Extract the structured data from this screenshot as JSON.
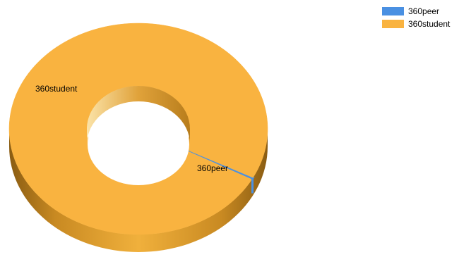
{
  "chart_data": {
    "type": "pie",
    "variant": "3d-doughnut",
    "title": "",
    "slices": [
      {
        "label": "360peer",
        "value": 0.3,
        "color": "#4a90e2"
      },
      {
        "label": "360student",
        "value": 99.7,
        "color": "#f9b340"
      }
    ],
    "legend": {
      "placement": "top-right",
      "entries": [
        {
          "label": "360peer",
          "color": "#4a90e2"
        },
        {
          "label": "360student",
          "color": "#f9b340"
        }
      ]
    }
  }
}
